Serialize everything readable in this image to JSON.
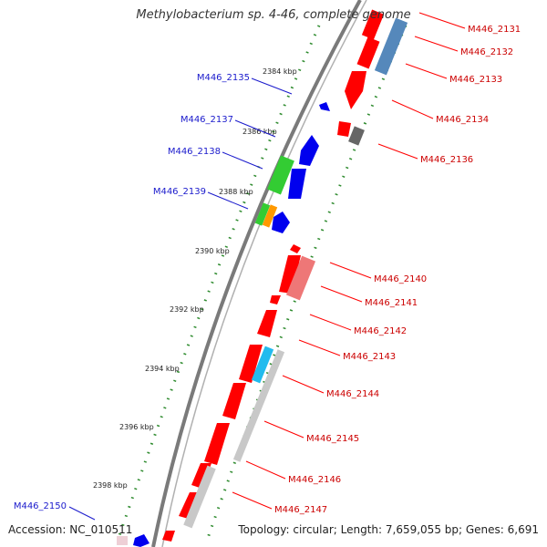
{
  "title": "Methylobacterium sp. 4-46, complete genome",
  "footer": {
    "accession": "Accession: NC_010511",
    "topology": "Topology: circular; Length: 7,659,055 bp; Genes: 6,691"
  },
  "colors": {
    "backbone": "#7a7a7a",
    "tick_dots": "#2e8b2e",
    "forward_label": "#cc0000",
    "reverse_label": "#1a1acc",
    "gene_red": "#ff0000",
    "gene_blue": "#0000ee",
    "gene_green": "#33cc33",
    "gene_orange": "#ff9900",
    "gene_cyan": "#22bbee",
    "gene_steelblue": "#5588bb",
    "gene_gray": "#666666",
    "gene_pink": "#ee7777",
    "gene_lightgray": "#c8c8c8"
  },
  "ticks": [
    {
      "label": "2384 kbp",
      "kbp": 2384
    },
    {
      "label": "2386 kbp",
      "kbp": 2386
    },
    {
      "label": "2388 kbp",
      "kbp": 2388
    },
    {
      "label": "2390 kbp",
      "kbp": 2390
    },
    {
      "label": "2392 kbp",
      "kbp": 2392
    },
    {
      "label": "2394 kbp",
      "kbp": 2394
    },
    {
      "label": "2396 kbp",
      "kbp": 2396
    },
    {
      "label": "2398 kbp",
      "kbp": 2398
    }
  ],
  "forward_genes": [
    "M446_2131",
    "M446_2132",
    "M446_2133",
    "M446_2134",
    "M446_2136",
    "M446_2140",
    "M446_2141",
    "M446_2142",
    "M446_2143",
    "M446_2144",
    "M446_2145",
    "M446_2146",
    "M446_2147"
  ],
  "reverse_genes": [
    "M446_2135",
    "M446_2137",
    "M446_2138",
    "M446_2139",
    "M446_2150"
  ]
}
